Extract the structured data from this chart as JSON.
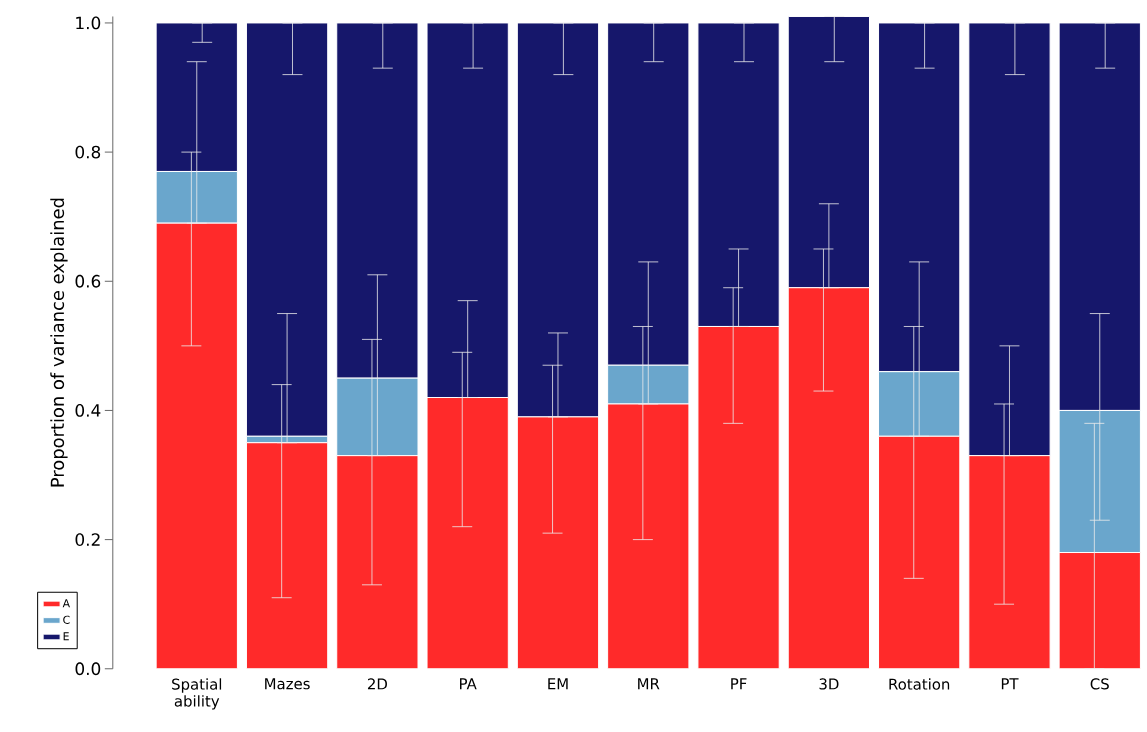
{
  "chart_data": {
    "type": "bar",
    "stacked": true,
    "ylabel": "Proportion of variance explained",
    "categories": [
      "Spatial ability",
      "Mazes",
      "2D",
      "PA",
      "EM",
      "MR",
      "PF",
      "3D",
      "Rotation",
      "PT",
      "CS"
    ],
    "series": [
      {
        "name": "A",
        "color": "#ff2a2a",
        "values": [
          0.69,
          0.35,
          0.33,
          0.42,
          0.39,
          0.41,
          0.53,
          0.59,
          0.36,
          0.33,
          0.18
        ],
        "errors": [
          [
            0.5,
            0.8
          ],
          [
            0.11,
            0.44
          ],
          [
            0.13,
            0.51
          ],
          [
            0.22,
            0.49
          ],
          [
            0.21,
            0.47
          ],
          [
            0.2,
            0.53
          ],
          [
            0.38,
            0.59
          ],
          [
            0.43,
            0.65
          ],
          [
            0.14,
            0.53
          ],
          [
            0.1,
            0.41
          ],
          [
            0.0,
            0.38
          ]
        ]
      },
      {
        "name": "C",
        "color": "#6aa6cc",
        "values": [
          0.08,
          0.01,
          0.12,
          0.0,
          0.0,
          0.06,
          0.0,
          0.0,
          0.1,
          0.0,
          0.22
        ],
        "errors": [
          [
            0.69,
            0.94
          ],
          [
            0.35,
            0.55
          ],
          [
            0.33,
            0.61
          ],
          [
            0.42,
            0.57
          ],
          [
            0.39,
            0.52
          ],
          [
            0.41,
            0.63
          ],
          [
            0.53,
            0.65
          ],
          [
            0.59,
            0.72
          ],
          [
            0.36,
            0.63
          ],
          [
            0.33,
            0.5
          ],
          [
            0.23,
            0.55
          ]
        ]
      },
      {
        "name": "E",
        "color": "#16176b",
        "values": [
          0.23,
          0.64,
          0.55,
          0.58,
          0.61,
          0.53,
          0.47,
          0.42,
          0.54,
          0.67,
          0.6
        ],
        "errors": [
          [
            0.97,
            1.0
          ],
          [
            0.92,
            1.0
          ],
          [
            0.93,
            1.0
          ],
          [
            0.93,
            1.0
          ],
          [
            0.92,
            1.0
          ],
          [
            0.94,
            1.0
          ],
          [
            0.94,
            1.0
          ],
          [
            0.94,
            1.01
          ],
          [
            0.93,
            1.0
          ],
          [
            0.92,
            1.0
          ],
          [
            0.93,
            1.0
          ]
        ]
      }
    ],
    "ylim": [
      0,
      1.01
    ],
    "yticks": [
      {
        "value": 0,
        "label": "0.0"
      },
      {
        "value": 0.2,
        "label": "0.2"
      },
      {
        "value": 0.4,
        "label": "0.4"
      },
      {
        "value": 0.6,
        "label": "0.6"
      },
      {
        "value": 0.8,
        "label": "0.8"
      },
      {
        "value": 1.0,
        "label": "1.0"
      }
    ],
    "legend": "bottom left",
    "grid": false
  }
}
